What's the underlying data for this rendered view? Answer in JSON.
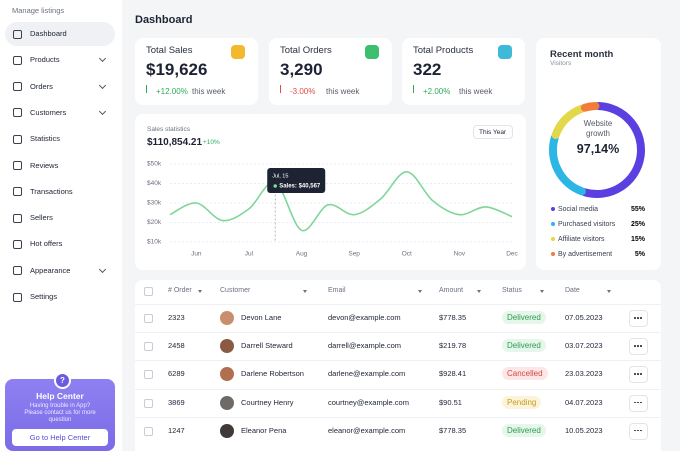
{
  "sidebar": {
    "heading": "Manage listings",
    "items": [
      {
        "label": "Dashboard",
        "active": true
      },
      {
        "label": "Products",
        "has_submenu": true
      },
      {
        "label": "Orders",
        "has_submenu": true
      },
      {
        "label": "Customers",
        "has_submenu": true
      },
      {
        "label": "Statistics"
      },
      {
        "label": "Reviews"
      },
      {
        "label": "Transactions"
      },
      {
        "label": "Sellers"
      },
      {
        "label": "Hot offers"
      },
      {
        "label": "Appearance",
        "has_submenu": true
      },
      {
        "label": "Settings"
      }
    ]
  },
  "help": {
    "icon": "?",
    "title": "Help Center",
    "text": "Having trouble in App? Please contact us for more question",
    "button": "Go to Help Center"
  },
  "header": {
    "title": "Dashboard"
  },
  "stats": [
    {
      "title": "Total Sales",
      "value": "$19,626",
      "change": "+12.00%",
      "period": "this week",
      "color": "#f2b92d"
    },
    {
      "title": "Total Orders",
      "value": "3,290",
      "change": "-3.00%",
      "period": "this week",
      "color": "#3cc070"
    },
    {
      "title": "Total Products",
      "value": "322",
      "change": "+2.00%",
      "period": "this week",
      "color": "#3eb9d8"
    }
  ],
  "chart_data": [
    {
      "type": "line",
      "title": "Sales statistics",
      "total": "$110,854.21",
      "change": "+10%",
      "period_select": "This Year",
      "categories": [
        null,
        "Jun",
        null,
        "Jul",
        null,
        "Aug",
        null,
        "Sep",
        null,
        "Oct",
        null,
        "Nov",
        null,
        "Dec"
      ],
      "series": [
        {
          "name": "Sales",
          "color": "#7fd699",
          "values": [
            24000,
            30000,
            21000,
            27000,
            40500,
            16000,
            29000,
            24000,
            32000,
            46000,
            31000,
            24000,
            28000,
            23000
          ]
        }
      ],
      "ylim": [
        10000,
        50000
      ],
      "yticks": [
        {
          "value": 10000,
          "label": "$10k"
        },
        {
          "value": 20000,
          "label": "$20k"
        },
        {
          "value": 30000,
          "label": "$30k"
        },
        {
          "value": 40000,
          "label": "$40k"
        },
        {
          "value": 50000,
          "label": "$50k"
        }
      ],
      "grid": true,
      "tooltip": {
        "date": "Jul, 15",
        "label": "Sales: $40,567"
      }
    },
    {
      "type": "pie",
      "title": "Recent month",
      "subtitle": "Visitors",
      "donut": true,
      "center_label": "Website growth",
      "center_value": "97,14%",
      "categories": [
        "Social media",
        "Purchased visitors",
        "Affiliate visitors",
        "By advertisement"
      ],
      "values": [
        55,
        25,
        15,
        5
      ],
      "value_labels": [
        "55%",
        "25%",
        "15%",
        "5%"
      ],
      "colors": [
        "#5b3fe0",
        "#2bb6e6",
        "#e3d84a",
        "#f27c3a"
      ]
    }
  ],
  "table": {
    "columns": [
      "# Order",
      "Customer",
      "Email",
      "Amount",
      "Status",
      "Date"
    ],
    "rows": [
      [
        "2323",
        "Devon Lane",
        "devon@example.com",
        "$778.35",
        "Delivered",
        "07.05.2023"
      ],
      [
        "2458",
        "Darrell Steward",
        "darrell@example.com",
        "$219.78",
        "Delivered",
        "03.07.2023"
      ],
      [
        "6289",
        "Darlene Robertson",
        "darlene@example.com",
        "$928.41",
        "Cancelled",
        "23.03.2023"
      ],
      [
        "3869",
        "Courtney Henry",
        "courtney@example.com",
        "$90.51",
        "Pending",
        "04.07.2023"
      ],
      [
        "1247",
        "Eleanor Pena",
        "eleanor@example.com",
        "$778.35",
        "Delivered",
        "10.05.2023"
      ]
    ],
    "status_tones": [
      "green",
      "green",
      "red",
      "yellow",
      "green"
    ]
  }
}
